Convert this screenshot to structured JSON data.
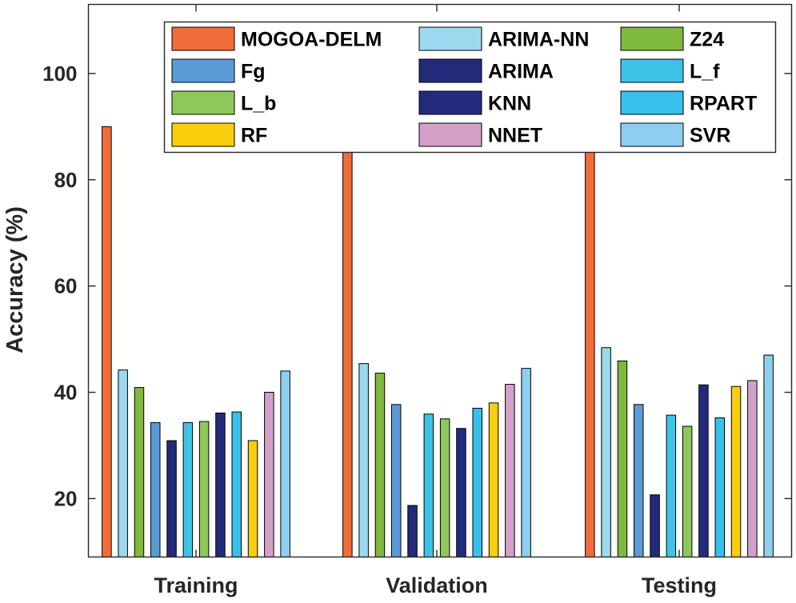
{
  "chart_data": {
    "type": "bar",
    "ylabel": "Accuracy (%)",
    "xlabel": "",
    "ylim": [
      9,
      113
    ],
    "yticks": [
      20,
      40,
      60,
      80,
      100
    ],
    "grid": false,
    "legend_position": "top-right",
    "categories": [
      "Training",
      "Validation",
      "Testing"
    ],
    "series": [
      {
        "name": "MOGOA-DELM",
        "color": "#f26c3a",
        "values": [
          90.0,
          87.7,
          85.7
        ]
      },
      {
        "name": "ARIMA-NN",
        "color": "#9ad9ee",
        "values": [
          44.2,
          45.4,
          48.4
        ]
      },
      {
        "name": "Z24",
        "color": "#7fb93d",
        "values": [
          40.9,
          43.6,
          45.9
        ]
      },
      {
        "name": "Fg",
        "color": "#5a9bd5",
        "values": [
          34.3,
          37.7,
          37.7
        ]
      },
      {
        "name": "ARIMA",
        "color": "#232a78",
        "values": [
          30.9,
          18.7,
          20.7
        ]
      },
      {
        "name": "L_f",
        "color": "#3ec3e8",
        "values": [
          34.3,
          35.9,
          35.7
        ]
      },
      {
        "name": "L_b",
        "color": "#8fc85a",
        "values": [
          34.5,
          35.0,
          33.6
        ]
      },
      {
        "name": "KNN",
        "color": "#222b7b",
        "values": [
          36.1,
          33.2,
          41.4
        ]
      },
      {
        "name": "RPART",
        "color": "#37c0ea",
        "values": [
          36.3,
          37.0,
          35.2
        ]
      },
      {
        "name": "RF",
        "color": "#f9cf0d",
        "values": [
          30.9,
          38.0,
          41.1
        ]
      },
      {
        "name": "NNET",
        "color": "#d3a0c8",
        "values": [
          40.0,
          41.5,
          42.2
        ]
      },
      {
        "name": "SVR",
        "color": "#8ecfef",
        "values": [
          44.0,
          44.5,
          47.0
        ]
      }
    ],
    "legend_order": [
      "MOGOA-DELM",
      "ARIMA-NN",
      "Z24",
      "Fg",
      "ARIMA",
      "L_f",
      "L_b",
      "KNN",
      "RPART",
      "RF",
      "NNET",
      "SVR"
    ]
  }
}
